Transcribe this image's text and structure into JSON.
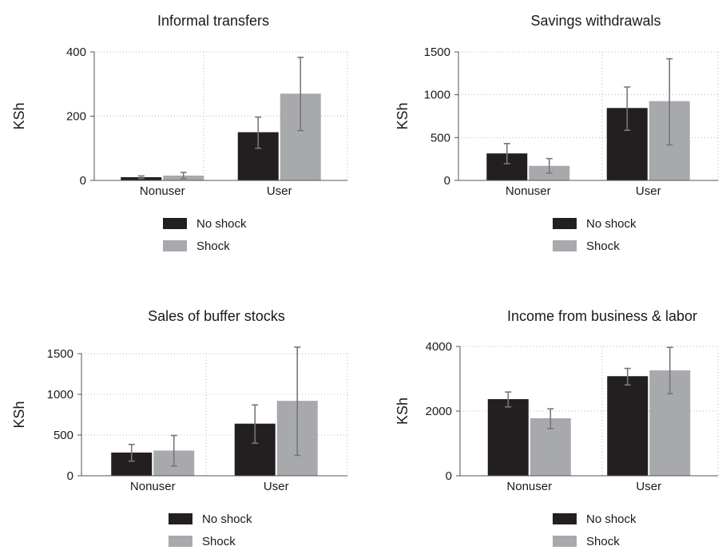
{
  "colors": {
    "no_shock": "#231f20",
    "shock": "#a7a9ac",
    "error_bar": "#777777",
    "axis": "#555555",
    "grid": "#b8b8b8"
  },
  "chart_data": [
    {
      "type": "bar",
      "title": "Informal transfers",
      "ylabel": "KSh",
      "categories": [
        "Nonuser",
        "User"
      ],
      "ylim": [
        0,
        400
      ],
      "yticks": [
        0,
        200,
        400
      ],
      "grid": true,
      "legend": "bottom",
      "series": [
        {
          "name": "No shock",
          "values": [
            10,
            150
          ],
          "err_low": [
            6,
            100
          ],
          "err_high": [
            14,
            197
          ]
        },
        {
          "name": "Shock",
          "values": [
            15,
            270
          ],
          "err_low": [
            6,
            155
          ],
          "err_high": [
            25,
            383
          ]
        }
      ]
    },
    {
      "type": "bar",
      "title": "Savings withdrawals",
      "ylabel": "KSh",
      "categories": [
        "Nonuser",
        "User"
      ],
      "ylim": [
        0,
        1500
      ],
      "yticks": [
        0,
        500,
        1000,
        1500
      ],
      "grid": true,
      "legend": "bottom",
      "series": [
        {
          "name": "No shock",
          "values": [
            315,
            845
          ],
          "err_low": [
            195,
            585
          ],
          "err_high": [
            430,
            1090
          ]
        },
        {
          "name": "Shock",
          "values": [
            170,
            925
          ],
          "err_low": [
            85,
            415
          ],
          "err_high": [
            255,
            1420
          ]
        }
      ]
    },
    {
      "type": "bar",
      "title": "Sales of buffer stocks",
      "ylabel": "KSh",
      "categories": [
        "Nonuser",
        "User"
      ],
      "ylim": [
        0,
        1500
      ],
      "yticks": [
        0,
        500,
        1000,
        1500
      ],
      "grid": true,
      "legend": "bottom",
      "series": [
        {
          "name": "No shock",
          "values": [
            285,
            640
          ],
          "err_low": [
            180,
            400
          ],
          "err_high": [
            385,
            870
          ]
        },
        {
          "name": "Shock",
          "values": [
            310,
            920
          ],
          "err_low": [
            120,
            250
          ],
          "err_high": [
            495,
            1580
          ]
        }
      ]
    },
    {
      "type": "bar",
      "title": "Income from business & labor",
      "ylabel": "KSh",
      "categories": [
        "Nonuser",
        "User"
      ],
      "ylim": [
        0,
        4000
      ],
      "yticks": [
        0,
        2000,
        4000
      ],
      "grid": true,
      "legend": "bottom",
      "series": [
        {
          "name": "No shock",
          "values": [
            2370,
            3080
          ],
          "err_low": [
            2130,
            2810
          ],
          "err_high": [
            2590,
            3320
          ]
        },
        {
          "name": "Shock",
          "values": [
            1780,
            3260
          ],
          "err_low": [
            1460,
            2540
          ],
          "err_high": [
            2070,
            3970
          ]
        }
      ]
    }
  ]
}
